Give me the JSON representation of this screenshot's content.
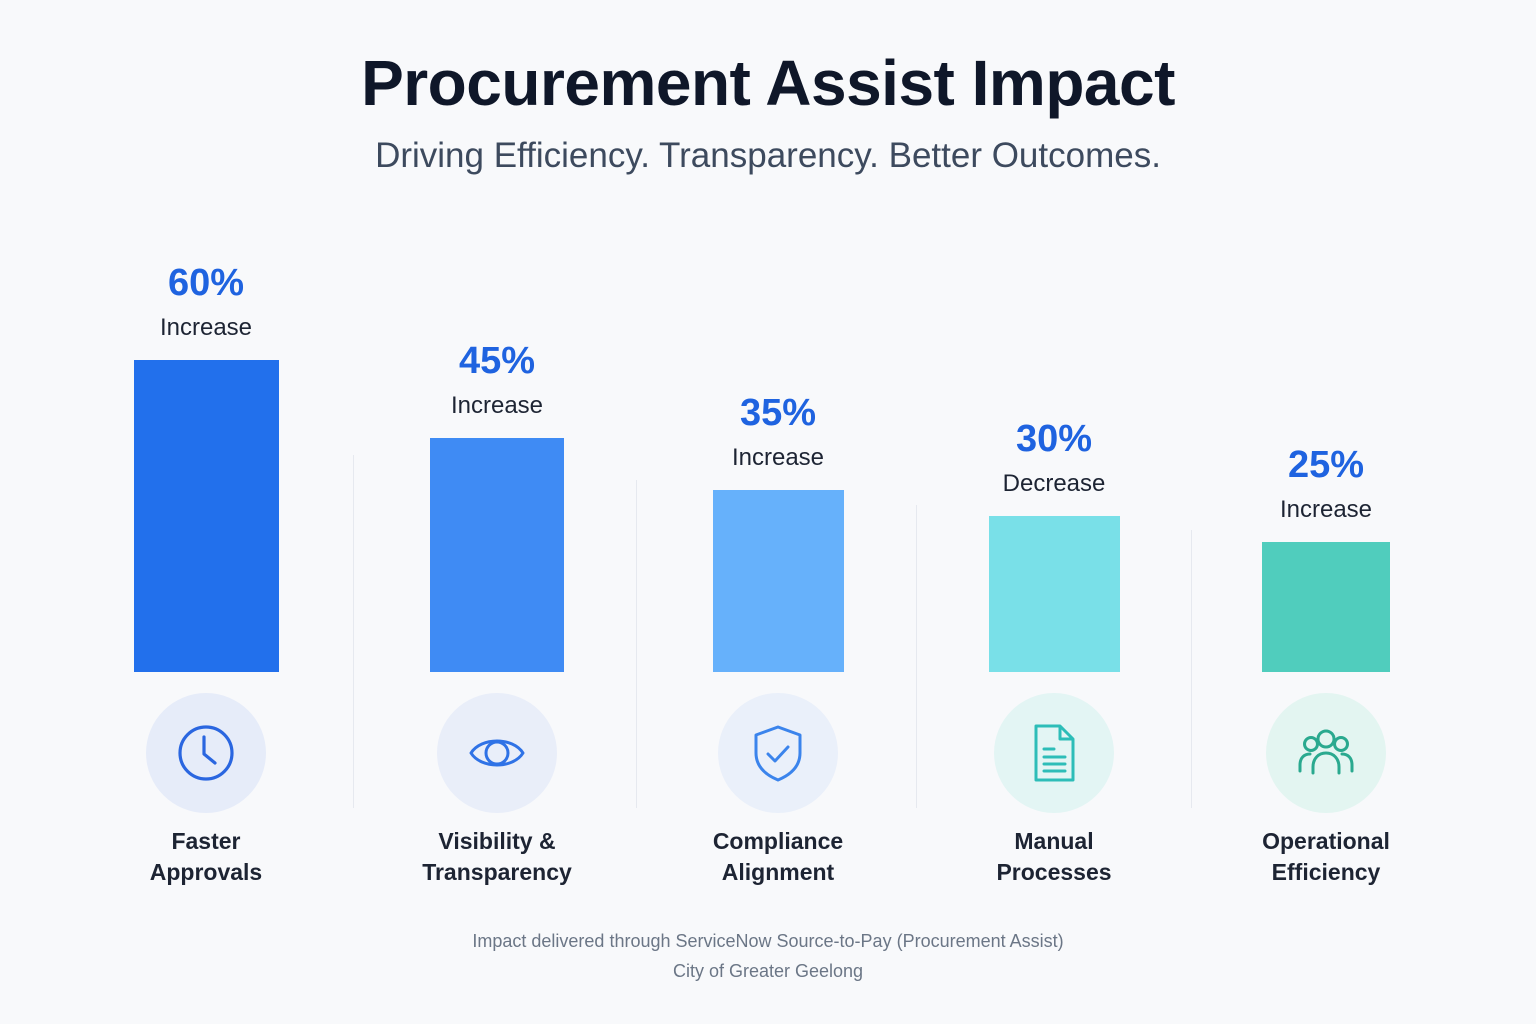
{
  "header": {
    "title": "Procurement Assist Impact",
    "subtitle": "Driving Efficiency. Transparency. Better Outcomes."
  },
  "chart_data": {
    "type": "bar",
    "title": "Procurement Assist Impact",
    "subtitle": "Driving Efficiency. Transparency. Better Outcomes.",
    "xlabel": "",
    "ylabel": "",
    "ylim": [
      0,
      60
    ],
    "grid": false,
    "legend": "none",
    "categories": [
      [
        "Faster",
        "Approvals"
      ],
      [
        "Visibility &",
        "Transparency"
      ],
      [
        "Compliance",
        "Alignment"
      ],
      [
        "Manual",
        "Processes"
      ],
      [
        "Operational",
        "Efficiency"
      ]
    ],
    "values": [
      60,
      45,
      35,
      30,
      25
    ],
    "value_labels": [
      "60%",
      "45%",
      "35%",
      "30%",
      "25%"
    ],
    "directions": [
      "Increase",
      "Increase",
      "Increase",
      "Decrease",
      "Increase"
    ],
    "icons": [
      "clock-icon",
      "eye-icon",
      "shield-check-icon",
      "document-icon",
      "people-icon"
    ],
    "colors": [
      "#2270ec",
      "#3f8bf4",
      "#66b1fb",
      "#79e0e8",
      "#50cdbd"
    ],
    "icon_colors": [
      "#2a66e0",
      "#2f72e6",
      "#3b84ec",
      "#2dbdb8",
      "#2aa98f"
    ],
    "icon_bg_colors": [
      "#e6ecf9",
      "#e9eef9",
      "#eaf0fa",
      "#e3f5f4",
      "#e3f5f1"
    ]
  },
  "footer": {
    "line1": "Impact delivered through ServiceNow Source-to-Pay (Procurement Assist)",
    "line2": "City of Greater Geelong"
  },
  "colors": {
    "accent": "#1f63e0",
    "title": "#0f1729",
    "background": "#f8f9fb"
  }
}
